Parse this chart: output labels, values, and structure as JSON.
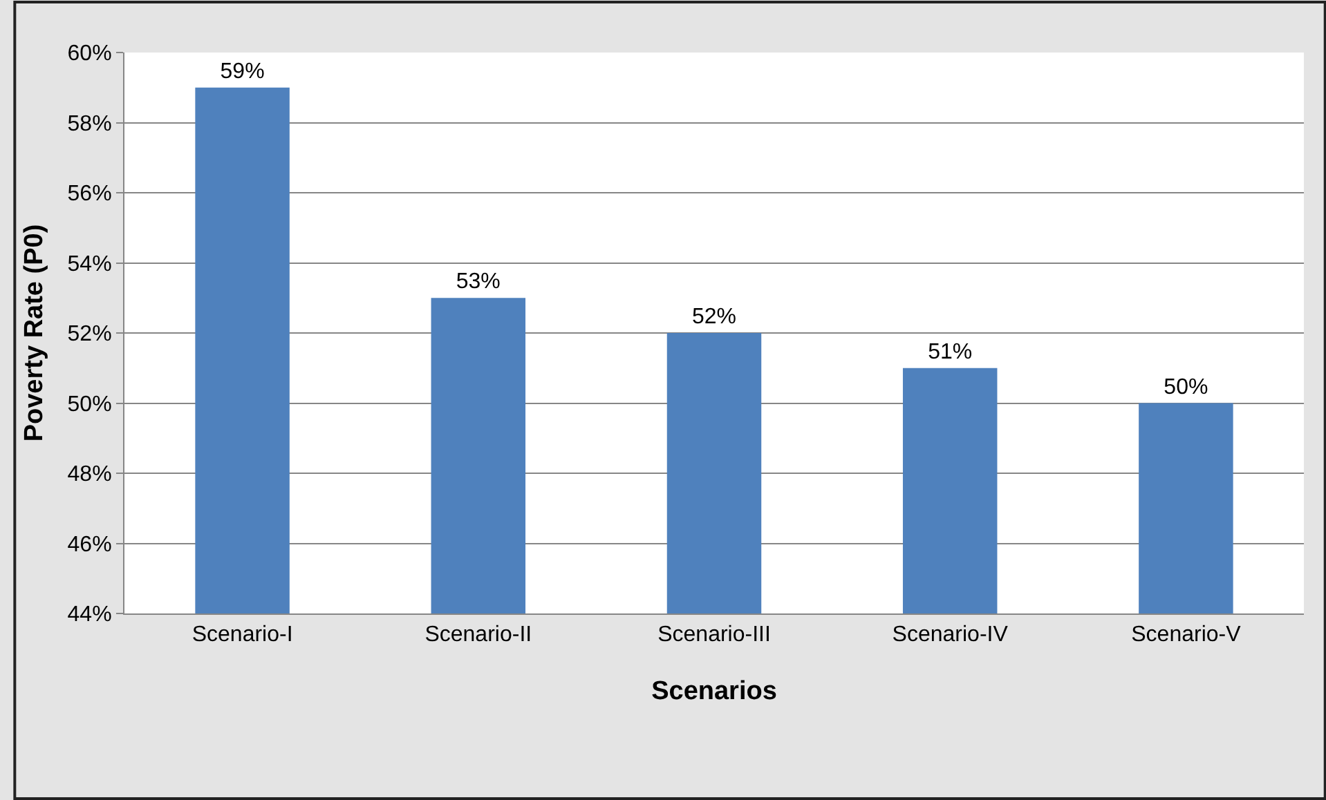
{
  "chart_data": {
    "type": "bar",
    "xlabel": "Scenarios",
    "ylabel": "Poverty Rate (P0)",
    "categories": [
      "Scenario-I",
      "Scenario-II",
      "Scenario-III",
      "Scenario-IV",
      "Scenario-V"
    ],
    "values": [
      59,
      53,
      52,
      51,
      50
    ],
    "value_labels": [
      "59%",
      "53%",
      "52%",
      "51%",
      "50%"
    ],
    "color": "#4f81bd",
    "ylim": [
      44,
      60
    ],
    "yticks": [
      {
        "value": 44,
        "label": "44%"
      },
      {
        "value": 46,
        "label": "46%"
      },
      {
        "value": 48,
        "label": "48%"
      },
      {
        "value": 50,
        "label": "50%"
      },
      {
        "value": 52,
        "label": "52%"
      },
      {
        "value": 54,
        "label": "54%"
      },
      {
        "value": 56,
        "label": "56%"
      },
      {
        "value": 58,
        "label": "58%"
      },
      {
        "value": 60,
        "label": "60%"
      }
    ],
    "grid": "y"
  }
}
